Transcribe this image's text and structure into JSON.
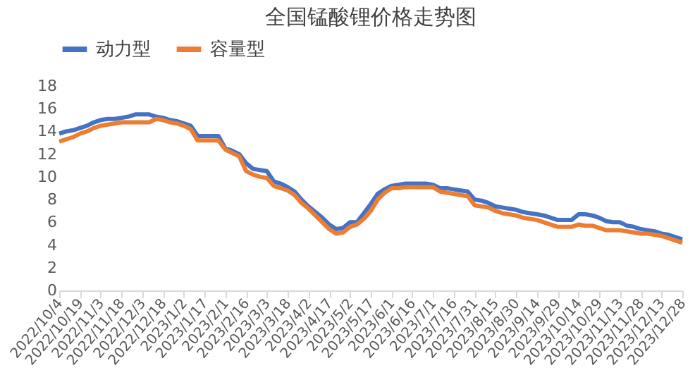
{
  "chart_data": {
    "type": "line",
    "title": "全国锰酸锂价格走势图",
    "categories": [
      "2022/10/4",
      null,
      null,
      "2022/10/19",
      null,
      null,
      "2022/11/3",
      null,
      null,
      "2022/11/18",
      null,
      null,
      "2022/12/3",
      null,
      null,
      "2022/12/18",
      null,
      null,
      "2023/1/2",
      null,
      null,
      "2023/1/17",
      null,
      null,
      "2023/2/1",
      null,
      null,
      "2023/2/16",
      null,
      null,
      "2023/3/3",
      null,
      null,
      "2023/3/18",
      null,
      null,
      "2023/4/2",
      null,
      null,
      "2023/4/17",
      null,
      null,
      "2023/5/2",
      null,
      null,
      "2023/5/17",
      null,
      null,
      "2023/6/1",
      null,
      null,
      "2023/6/16",
      null,
      null,
      "2023/7/1",
      null,
      null,
      "2023/7/16",
      null,
      null,
      "2023/7/31",
      null,
      null,
      "2023/8/15",
      null,
      null,
      "2023/8/30",
      null,
      null,
      "2023/9/14",
      null,
      null,
      "2023/9/29",
      null,
      null,
      "2023/10/14",
      null,
      null,
      "2023/10/29",
      null,
      null,
      "2023/11/13",
      null,
      null,
      "2023/11/28",
      null,
      null,
      "2023/12/13",
      null,
      null,
      "2023/12/28"
    ],
    "series": [
      {
        "name": "动力型",
        "color": "#4472c4",
        "values": [
          13.8,
          14.0,
          14.1,
          14.3,
          14.5,
          14.8,
          15.0,
          15.1,
          15.1,
          15.2,
          15.3,
          15.5,
          15.5,
          15.5,
          15.3,
          15.2,
          15.0,
          14.9,
          14.7,
          14.5,
          13.6,
          13.6,
          13.6,
          13.6,
          12.5,
          12.3,
          12.0,
          11.2,
          10.7,
          10.6,
          10.5,
          9.6,
          9.4,
          9.1,
          8.7,
          8.0,
          7.4,
          6.9,
          6.4,
          5.8,
          5.4,
          5.5,
          6.0,
          6.0,
          6.8,
          7.6,
          8.5,
          8.9,
          9.2,
          9.3,
          9.4,
          9.4,
          9.4,
          9.4,
          9.3,
          9.0,
          9.0,
          8.9,
          8.8,
          8.7,
          8.0,
          7.9,
          7.7,
          7.4,
          7.3,
          7.2,
          7.1,
          6.9,
          6.8,
          6.7,
          6.6,
          6.4,
          6.2,
          6.2,
          6.2,
          6.7,
          6.7,
          6.6,
          6.4,
          6.1,
          6.0,
          6.0,
          5.7,
          5.6,
          5.4,
          5.3,
          5.2,
          5.0,
          4.9,
          4.7,
          4.5
        ]
      },
      {
        "name": "容量型",
        "color": "#ed7d31",
        "values": [
          13.1,
          13.3,
          13.5,
          13.8,
          14.0,
          14.3,
          14.5,
          14.6,
          14.7,
          14.8,
          14.8,
          14.8,
          14.8,
          14.8,
          15.1,
          15.0,
          14.8,
          14.7,
          14.5,
          14.2,
          13.2,
          13.2,
          13.2,
          13.2,
          12.4,
          12.1,
          11.8,
          10.5,
          10.2,
          10.0,
          9.9,
          9.2,
          9.0,
          8.8,
          8.4,
          7.7,
          7.2,
          6.6,
          6.0,
          5.4,
          5.0,
          5.1,
          5.6,
          5.8,
          6.3,
          7.0,
          8.0,
          8.6,
          9.0,
          9.0,
          9.1,
          9.1,
          9.1,
          9.1,
          9.1,
          8.7,
          8.6,
          8.5,
          8.4,
          8.3,
          7.5,
          7.4,
          7.3,
          7.0,
          6.8,
          6.7,
          6.6,
          6.4,
          6.3,
          6.2,
          6.0,
          5.8,
          5.6,
          5.6,
          5.6,
          5.8,
          5.7,
          5.7,
          5.5,
          5.3,
          5.3,
          5.3,
          5.2,
          5.1,
          5.0,
          5.0,
          4.9,
          4.8,
          4.6,
          4.4,
          4.2
        ]
      }
    ],
    "ylim": [
      0,
      18
    ],
    "yticks": [
      0,
      2,
      4,
      6,
      8,
      10,
      12,
      14,
      16,
      18
    ],
    "grid": false,
    "legend": "top",
    "line_style": "solid",
    "marker": "none"
  }
}
